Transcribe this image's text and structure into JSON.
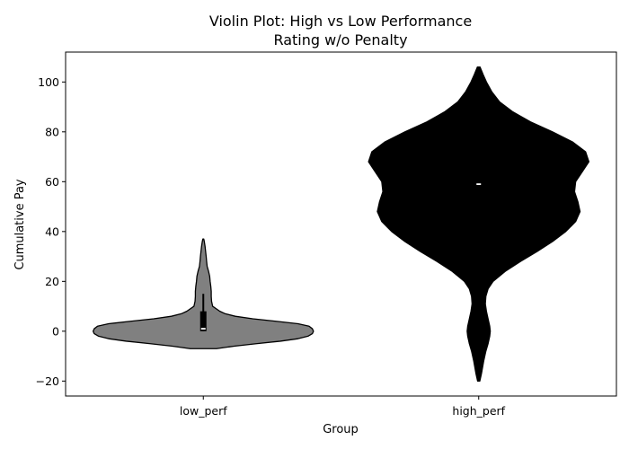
{
  "chart_data": {
    "type": "violin",
    "title_line1": "Violin Plot: High vs Low Performance",
    "title_line2": "Rating w/o Penalty",
    "xlabel": "Group",
    "ylabel": "Cumulative Pay",
    "ylim": [
      -26,
      112
    ],
    "yticks": [
      -20,
      0,
      20,
      40,
      60,
      80,
      100
    ],
    "ytick_labels": [
      "−20",
      "0",
      "20",
      "40",
      "60",
      "80",
      "100"
    ],
    "grid": false,
    "categories": [
      "low_perf",
      "high_perf"
    ],
    "violins": [
      {
        "category": "low_perf",
        "color": "#808080",
        "min": -7,
        "max": 37,
        "median": 1,
        "q1": 0,
        "q3": 8,
        "whisker_low": 0,
        "whisker_high": 15,
        "profile": [
          [
            -7,
            0.12
          ],
          [
            -6,
            0.28
          ],
          [
            -5,
            0.48
          ],
          [
            -4,
            0.7
          ],
          [
            -3,
            0.86
          ],
          [
            -2,
            0.95
          ],
          [
            -1,
            0.99
          ],
          [
            0,
            1.0
          ],
          [
            1,
            0.99
          ],
          [
            2,
            0.96
          ],
          [
            3,
            0.86
          ],
          [
            4,
            0.66
          ],
          [
            5,
            0.45
          ],
          [
            6,
            0.29
          ],
          [
            7,
            0.2
          ],
          [
            8,
            0.15
          ],
          [
            10,
            0.085
          ],
          [
            12,
            0.075
          ],
          [
            14,
            0.072
          ],
          [
            16,
            0.072
          ],
          [
            18,
            0.068
          ],
          [
            20,
            0.062
          ],
          [
            22,
            0.058
          ],
          [
            24,
            0.048
          ],
          [
            26,
            0.035
          ],
          [
            28,
            0.03
          ],
          [
            30,
            0.026
          ],
          [
            32,
            0.021
          ],
          [
            34,
            0.016
          ],
          [
            36,
            0.009
          ],
          [
            37,
            0.004
          ]
        ]
      },
      {
        "category": "high_perf",
        "color": "#000000",
        "min": -20,
        "max": 106,
        "median": 59,
        "q1": 59,
        "q3": 59,
        "whisker_low": 59,
        "whisker_high": 59,
        "profile": [
          [
            -20,
            0.01
          ],
          [
            -17,
            0.025
          ],
          [
            -12,
            0.045
          ],
          [
            -8,
            0.065
          ],
          [
            -5,
            0.085
          ],
          [
            -2,
            0.1
          ],
          [
            0,
            0.105
          ],
          [
            2,
            0.1
          ],
          [
            5,
            0.085
          ],
          [
            8,
            0.07
          ],
          [
            11,
            0.06
          ],
          [
            14,
            0.065
          ],
          [
            17,
            0.085
          ],
          [
            20,
            0.13
          ],
          [
            24,
            0.24
          ],
          [
            28,
            0.38
          ],
          [
            32,
            0.53
          ],
          [
            36,
            0.67
          ],
          [
            40,
            0.79
          ],
          [
            44,
            0.88
          ],
          [
            48,
            0.92
          ],
          [
            52,
            0.9
          ],
          [
            56,
            0.87
          ],
          [
            60,
            0.88
          ],
          [
            64,
            0.94
          ],
          [
            68,
            1.0
          ],
          [
            72,
            0.97
          ],
          [
            76,
            0.85
          ],
          [
            80,
            0.67
          ],
          [
            84,
            0.47
          ],
          [
            88,
            0.31
          ],
          [
            92,
            0.19
          ],
          [
            96,
            0.12
          ],
          [
            100,
            0.07
          ],
          [
            103,
            0.04
          ],
          [
            106,
            0.012
          ]
        ]
      }
    ]
  }
}
